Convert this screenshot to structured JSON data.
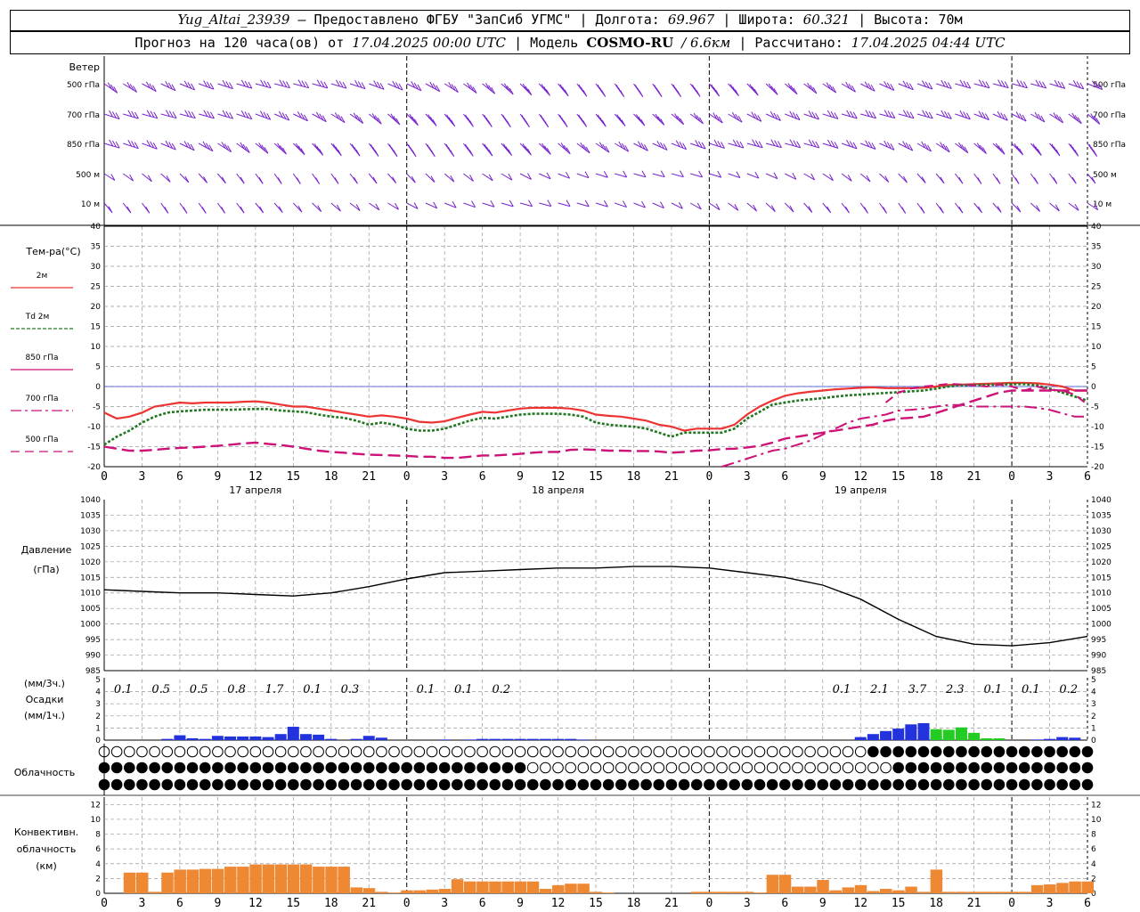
{
  "header": {
    "station": "Yug_Altai_23939",
    "provider": "– Предоставлено ФГБУ \"ЗапСиб УГМС\"",
    "lon_label": "Долгота:",
    "lon": "69.967",
    "lat_label": "Широта:",
    "lat": "60.321",
    "alt_label": "Высота:",
    "alt": "70м",
    "forecast_label": "Прогноз на 120 часа(ов) от",
    "forecast_from": "17.04.2025 00:00 UTC",
    "model_label": "Модель",
    "model": "COSMO-RU",
    "model_res": "/ 6.6км",
    "calc_label": "Рассчитано:",
    "calc_time": "17.04.2025 04:44 UTC"
  },
  "panels": {
    "wind": {
      "title": "Ветер",
      "levels": [
        "500 гПа",
        "700 гПа",
        "850 гПа",
        "500 м",
        "10  м"
      ]
    },
    "temperature": {
      "title": "Тем-ра(°C)",
      "legend": [
        "2м",
        "Td  2м",
        "850 гПа",
        "700 гПа",
        "500 гПа"
      ],
      "colors": [
        "#ee3333",
        "#227722",
        "#cc1177",
        "#cc1177",
        "#cc1177"
      ]
    },
    "pressure": {
      "title_1": "Давление",
      "title_2": "(гПа)"
    },
    "precip": {
      "title_1": "(мм/3ч.)",
      "title_2": "Осадки",
      "title_3": "(мм/1ч.)"
    },
    "clouds": {
      "title": "Облачность"
    },
    "convective": {
      "title_1": "Конвективн.",
      "title_2": "облачность",
      "title_3": "(км)"
    }
  },
  "x_axis": {
    "hours": [
      "0",
      "3",
      "6",
      "9",
      "12",
      "15",
      "18",
      "21",
      "0",
      "3",
      "6",
      "9",
      "12",
      "15",
      "18",
      "21",
      "0",
      "3",
      "6",
      "9",
      "12",
      "15",
      "18",
      "21",
      "0",
      "3",
      "6"
    ],
    "days": [
      "17 апреля",
      "18 апреля",
      "19 апреля"
    ]
  },
  "chart_data": [
    {
      "type": "line",
      "title": "Тем-ра(°C)",
      "x_hours": [
        0,
        1,
        2,
        3,
        4,
        5,
        6,
        7,
        8,
        9,
        10,
        11,
        12,
        13,
        14,
        15,
        16,
        17,
        18,
        19,
        20,
        21,
        22,
        23,
        24,
        25,
        26,
        27,
        28,
        29,
        30,
        31,
        32,
        33,
        34,
        35,
        36,
        37,
        38,
        39,
        40,
        41,
        42,
        43,
        44,
        45,
        46,
        47,
        48,
        49,
        50,
        51,
        52,
        53,
        54,
        55,
        56,
        57,
        58,
        59,
        60,
        61,
        62,
        63,
        64,
        65,
        66,
        67,
        68,
        69,
        70,
        71,
        72,
        73,
        74,
        75,
        76,
        77,
        78
      ],
      "ylim": [
        -20,
        40
      ],
      "series": [
        {
          "name": "2м",
          "values": [
            -6.5,
            -8,
            -7.5,
            -6.5,
            -5,
            -4.5,
            -4,
            -4.2,
            -4,
            -4,
            -4,
            -3.8,
            -3.7,
            -4,
            -4.5,
            -5,
            -5,
            -5.5,
            -6,
            -6.5,
            -7,
            -7.5,
            -7.2,
            -7.5,
            -8,
            -8.8,
            -9,
            -8.7,
            -7.8,
            -7,
            -6.3,
            -6.5,
            -6,
            -5.5,
            -5.3,
            -5.3,
            -5.3,
            -5.5,
            -6,
            -7,
            -7.3,
            -7.5,
            -8,
            -8.5,
            -9.5,
            -10,
            -11,
            -10.5,
            -10.5,
            -10.5,
            -9.5,
            -7,
            -5,
            -3.5,
            -2.3,
            -1.7,
            -1.3,
            -1,
            -0.7,
            -0.5,
            -0.3,
            -0.2,
            -0.4,
            -0.4,
            -0.4,
            -0.3,
            0,
            0.4,
            0.5,
            0.6,
            0.7,
            0.8,
            0.9,
            0.9,
            0.8,
            0.5,
            0,
            -1,
            -1
          ]
        },
        {
          "name": "Td  2м",
          "values": [
            -14.5,
            -12.5,
            -11,
            -9,
            -7.5,
            -6.5,
            -6.2,
            -6,
            -5.8,
            -5.8,
            -5.8,
            -5.7,
            -5.6,
            -5.6,
            -6,
            -6.2,
            -6.4,
            -7,
            -7.5,
            -7.8,
            -8.5,
            -9.5,
            -9,
            -9.5,
            -10.5,
            -11,
            -11,
            -10.5,
            -9.5,
            -8.5,
            -7.8,
            -8,
            -7.5,
            -7,
            -6.8,
            -6.8,
            -6.8,
            -7,
            -7.5,
            -9,
            -9.5,
            -9.8,
            -10,
            -10.5,
            -11.5,
            -12.5,
            -11.5,
            -11.5,
            -11.5,
            -11.5,
            -10.5,
            -8,
            -6.3,
            -4.5,
            -4,
            -3.5,
            -3.2,
            -2.9,
            -2.5,
            -2.2,
            -2,
            -1.8,
            -1.6,
            -1.4,
            -1.2,
            -1,
            -0.5,
            0,
            0.3,
            0.4,
            0.4,
            0.5,
            0.6,
            0.6,
            0.3,
            -0.5,
            -1.5,
            -2.5,
            -3.5
          ]
        },
        {
          "name": "850 гПа",
          "values": [
            -15,
            -15.5,
            -16,
            -16,
            -15.8,
            -15.5,
            -15.3,
            -15.2,
            -15,
            -14.8,
            -14.5,
            -14.2,
            -14,
            -14.3,
            -14.6,
            -15,
            -15.5,
            -16,
            -16.3,
            -16.5,
            -16.8,
            -17,
            -17.1,
            -17.2,
            -17.3,
            -17.5,
            -17.5,
            -17.8,
            -17.8,
            -17.5,
            -17.2,
            -17.2,
            -17,
            -16.8,
            -16.5,
            -16.3,
            -16.3,
            -15.8,
            -15.7,
            -15.8,
            -16,
            -16,
            -16.1,
            -16.1,
            -16.2,
            -16.5,
            -16.3,
            -16,
            -15.9,
            -15.6,
            -15.5,
            -15.2,
            -14.8,
            -14,
            -13,
            -12.5,
            -12,
            -11.5,
            -11,
            -10.5,
            -10,
            -9.5,
            -8.5,
            -8,
            -7.8,
            -7.5,
            -6.6,
            -5.6,
            -4.5,
            -3.5,
            -2.5,
            -1.5,
            -1,
            -1,
            -1,
            -1,
            -1,
            -1,
            -1
          ]
        },
        {
          "name": "700 гПа",
          "values": [
            null,
            null,
            null,
            null,
            null,
            null,
            null,
            null,
            null,
            null,
            null,
            null,
            null,
            null,
            null,
            null,
            null,
            null,
            null,
            null,
            null,
            null,
            null,
            null,
            null,
            null,
            null,
            null,
            null,
            null,
            null,
            null,
            null,
            null,
            null,
            null,
            null,
            null,
            null,
            null,
            null,
            null,
            null,
            null,
            null,
            null,
            null,
            null,
            null,
            -20,
            -19,
            -18,
            -17,
            -16,
            -15.5,
            -14.5,
            -13.5,
            -12,
            -10.5,
            -9,
            -8,
            -7.5,
            -7,
            -6,
            -5.8,
            -5.5,
            -5,
            -4.6,
            -4.6,
            -5,
            -5,
            -5,
            -5,
            -5,
            -5.3,
            -5.8,
            -6.7,
            -7.5,
            -7.5
          ]
        },
        {
          "name": "500 гПа",
          "values": [
            null,
            null,
            null,
            null,
            null,
            null,
            null,
            null,
            null,
            null,
            null,
            null,
            null,
            null,
            null,
            null,
            null,
            null,
            null,
            null,
            null,
            null,
            null,
            null,
            null,
            null,
            null,
            null,
            null,
            null,
            null,
            null,
            null,
            null,
            null,
            null,
            null,
            null,
            null,
            null,
            null,
            null,
            null,
            null,
            null,
            null,
            null,
            null,
            null,
            null,
            null,
            null,
            null,
            null,
            null,
            null,
            null,
            null,
            null,
            null,
            null,
            null,
            -4,
            -1.5,
            -0.5,
            0,
            0.3,
            0.7,
            0.5,
            0.3,
            0,
            0.5,
            0,
            -1,
            0,
            -0.8,
            -1,
            -2,
            -4.5
          ]
        }
      ]
    },
    {
      "type": "line",
      "title": "Давление",
      "ylabel": "(гПа)",
      "ylim": [
        985,
        1040
      ],
      "x_hours": [
        0,
        3,
        6,
        9,
        12,
        15,
        18,
        21,
        24,
        27,
        30,
        33,
        36,
        39,
        42,
        45,
        48,
        51,
        54,
        57,
        60,
        63,
        66,
        69,
        72,
        75,
        78
      ],
      "values": [
        1011,
        1010.5,
        1010,
        1010,
        1009.5,
        1009,
        1010,
        1012,
        1014.5,
        1016.5,
        1017,
        1017.5,
        1018,
        1018,
        1018.5,
        1018.5,
        1018,
        1016.5,
        1015,
        1012.5,
        1008,
        1001.5,
        996,
        993.5,
        993,
        994,
        996
      ],
      "series": [
        {
          "values": [
            1011,
            1010.5,
            1010,
            1010,
            1009.5,
            1009,
            1010,
            1012,
            1014.5,
            1016.5,
            1017,
            1017.5,
            1018,
            1018,
            1018.5,
            1018.5,
            1018,
            1016.5,
            1015,
            1012.5,
            1008,
            1001.5,
            996,
            993.5,
            993,
            994,
            996
          ]
        }
      ]
    },
    {
      "type": "bar",
      "title": "Осадки",
      "ylabel": "(мм/3ч.) (мм/1ч.)",
      "ylim": [
        0,
        5
      ],
      "x_hours": [
        0,
        1,
        2,
        3,
        4,
        5,
        6,
        7,
        8,
        9,
        10,
        11,
        12,
        13,
        14,
        15,
        16,
        17,
        18,
        19,
        20,
        21,
        22,
        23,
        24,
        25,
        26,
        27,
        28,
        29,
        30,
        31,
        32,
        33,
        34,
        35,
        36,
        37,
        38,
        39,
        40,
        41,
        42,
        43,
        44,
        45,
        46,
        47,
        48,
        49,
        50,
        51,
        52,
        53,
        54,
        55,
        56,
        57,
        58,
        59,
        60,
        61,
        62,
        63,
        64,
        65,
        66,
        67,
        68,
        69,
        70,
        71,
        72,
        73,
        74,
        75,
        76,
        77,
        78
      ],
      "series": [
        {
          "name": "дождь",
          "color": "#2233dd",
          "values": [
            0,
            0,
            0,
            0,
            0,
            0.1,
            0.4,
            0.15,
            0.1,
            0.35,
            0.3,
            0.3,
            0.3,
            0.25,
            0.5,
            1.1,
            0.5,
            0.45,
            0.1,
            0,
            0.1,
            0.35,
            0.2,
            0,
            0,
            0,
            0,
            0.05,
            0,
            0.05,
            0.1,
            0.1,
            0.1,
            0.1,
            0.1,
            0.1,
            0.1,
            0.1,
            0.05,
            0,
            0,
            0,
            0,
            0,
            0,
            0,
            0,
            0,
            0,
            0,
            0,
            0,
            0,
            0,
            0,
            0,
            0,
            0,
            0,
            0,
            0.25,
            0.5,
            0.75,
            0.95,
            1.3,
            1.4,
            0.3,
            0,
            0,
            0,
            0,
            0,
            0,
            0,
            0.05,
            0.1,
            0.25,
            0.2,
            0
          ]
        },
        {
          "name": "смешанные",
          "color": "#22cc22",
          "values": [
            0,
            0,
            0,
            0,
            0,
            0,
            0,
            0,
            0,
            0,
            0,
            0,
            0,
            0,
            0,
            0,
            0,
            0,
            0,
            0,
            0,
            0,
            0,
            0,
            0,
            0,
            0,
            0,
            0,
            0,
            0,
            0,
            0,
            0,
            0,
            0,
            0,
            0,
            0,
            0,
            0,
            0,
            0,
            0,
            0,
            0,
            0,
            0,
            0,
            0,
            0,
            0,
            0,
            0,
            0,
            0,
            0,
            0,
            0,
            0,
            0,
            0,
            0,
            0,
            0,
            0,
            0.9,
            0.85,
            1.05,
            0.6,
            0.15,
            0.15,
            0,
            0,
            0,
            0,
            0,
            0,
            0
          ]
        }
      ],
      "totals_3h": [
        "",
        "0.1",
        "0.5",
        "0.5",
        "0.8",
        "1.7",
        "0.1",
        "0.3",
        "",
        "0.1",
        "0.1",
        "0.2",
        "",
        "",
        "",
        "",
        "",
        "",
        "",
        "",
        "0.1",
        "2.1",
        "3.7",
        "2.3",
        "0.1",
        "0.1",
        "0.2"
      ]
    },
    {
      "type": "table",
      "title": "Облачность",
      "rows": [
        "OOOOOOOOOOOOOOOOOOOOOOOOOOOOOOOOOOOOOOOOOOOOOOOOOOOOOOOOOOOOOHHHHHHHHHHHHHHHHHHHHHHHHHHHHHHHHH",
        "HHHHHHHHHHHHHHHHHHHHHHHHHHHHHHHHHHOOOOOOOOOOOOOOOOOOOOOOOOOOOOOHHHHHHHHHHHHHHHHHHHHHHHHHHHHHH",
        "HHHHHHHHHHHHHHHHHHHHHHHHHHHHHHHHHHHHHHHHHHHHHHHHHHHHHHHHHHHHHHHHHHHHHHHHHHHHHHHHHHHHHHHHHHHHH"
      ]
    },
    {
      "type": "bar",
      "title": "Конвективн. облачность",
      "ylabel": "(км)",
      "ylim": [
        0,
        13
      ],
      "x_hours": [
        0,
        1,
        2,
        3,
        4,
        5,
        6,
        7,
        8,
        9,
        10,
        11,
        12,
        13,
        14,
        15,
        16,
        17,
        18,
        19,
        20,
        21,
        22,
        23,
        24,
        25,
        26,
        27,
        28,
        29,
        30,
        31,
        32,
        33,
        34,
        35,
        36,
        37,
        38,
        39,
        40,
        41,
        42,
        43,
        44,
        45,
        46,
        47,
        48,
        49,
        50,
        51,
        52,
        53,
        54,
        55,
        56,
        57,
        58,
        59,
        60,
        61,
        62,
        63,
        64,
        65,
        66,
        67,
        68,
        69,
        70,
        71,
        72,
        73,
        74,
        75,
        76,
        77,
        78
      ],
      "series": [
        {
          "name": "верхняя граница",
          "color": "#ee8833",
          "values": [
            0,
            0,
            2.8,
            2.8,
            0.2,
            2.8,
            3.2,
            3.2,
            3.3,
            3.3,
            3.6,
            3.6,
            3.9,
            3.9,
            3.9,
            3.9,
            3.9,
            3.6,
            3.6,
            3.6,
            0.8,
            0.7,
            0.2,
            0.1,
            0.4,
            0.4,
            0.5,
            0.6,
            1.9,
            1.6,
            1.6,
            1.6,
            1.6,
            1.6,
            1.6,
            0.6,
            1.1,
            1.3,
            1.3,
            0.2,
            0.1,
            0,
            0,
            0,
            0,
            0,
            0,
            0.2,
            0.2,
            0.2,
            0.2,
            0.2,
            0.1,
            2.5,
            2.5,
            0.9,
            0.9,
            1.8,
            0.4,
            0.8,
            1.1,
            0.3,
            0.6,
            0.4,
            0.9,
            0.2,
            3.2,
            0.2,
            0.2,
            0.2,
            0.2,
            0.2,
            0.2,
            0.2,
            1.1,
            1.2,
            1.4,
            1.6,
            1.6
          ]
        }
      ]
    }
  ]
}
